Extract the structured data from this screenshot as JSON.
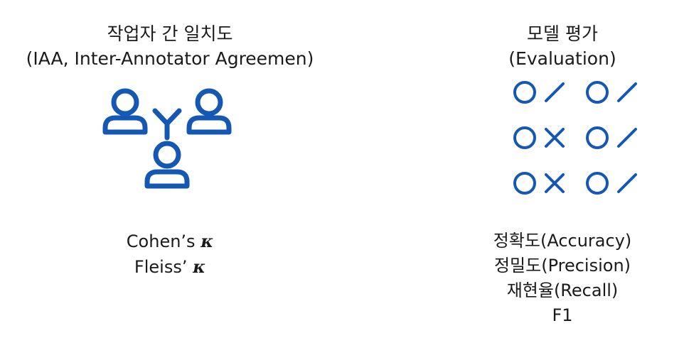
{
  "left": {
    "title_line1": "작업자 간 일치도",
    "title_line2": "(IAA, Inter-Annotator Agreemen)",
    "metrics": [
      {
        "name": "Cohen’s",
        "symbol": "κ"
      },
      {
        "name": "Fleiss’",
        "symbol": "κ"
      }
    ]
  },
  "right": {
    "title_line1": "모델 평가",
    "title_line2": "(Evaluation)",
    "grid": [
      [
        "circle",
        "slash",
        "circle",
        "slash"
      ],
      [
        "circle",
        "cross",
        "circle",
        "slash"
      ],
      [
        "circle",
        "cross",
        "circle",
        "slash"
      ]
    ],
    "metrics": [
      "정확도(Accuracy)",
      "정밀도(Precision)",
      "재현율(Recall)",
      "F1"
    ]
  },
  "colors": {
    "icon": "#1458b3",
    "text": "#1a1a1a"
  }
}
